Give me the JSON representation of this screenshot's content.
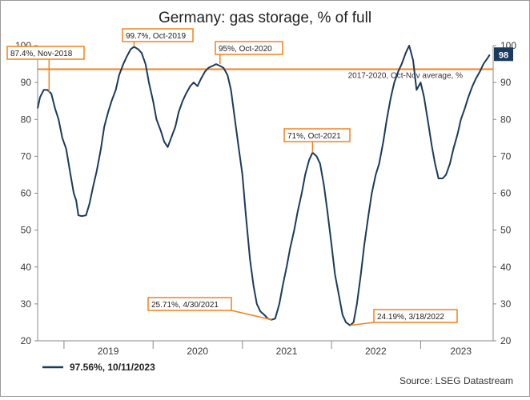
{
  "chart_data": {
    "type": "line",
    "title": "Germany: gas storage, % of full",
    "xlabel": "",
    "ylabel": "",
    "ylim": [
      20,
      100
    ],
    "yticks": [
      20,
      30,
      40,
      50,
      60,
      70,
      80,
      90,
      100
    ],
    "xlim": [
      "2018-09-15",
      "2023-10-25"
    ],
    "xticks": [
      {
        "label": "2019",
        "date": "2019-07-01"
      },
      {
        "label": "2020",
        "date": "2020-07-01"
      },
      {
        "label": "2021",
        "date": "2021-07-01"
      },
      {
        "label": "2022",
        "date": "2022-07-01"
      },
      {
        "label": "2023",
        "date": "2023-06-15"
      }
    ],
    "year_boundaries": [
      "2019-01-01",
      "2020-01-01",
      "2021-01-01",
      "2022-01-01",
      "2023-01-01"
    ],
    "grid": false,
    "series": [
      {
        "name": "97.56%, 10/11/2023",
        "color": "#1b3a5c",
        "points": [
          [
            "2018-09-15",
            83
          ],
          [
            "2018-09-25",
            86
          ],
          [
            "2018-10-10",
            88
          ],
          [
            "2018-10-25",
            88
          ],
          [
            "2018-11-10",
            87
          ],
          [
            "2018-11-25",
            83
          ],
          [
            "2018-12-10",
            80
          ],
          [
            "2018-12-25",
            75
          ],
          [
            "2019-01-10",
            72
          ],
          [
            "2019-01-25",
            66
          ],
          [
            "2019-02-10",
            60
          ],
          [
            "2019-02-20",
            58
          ],
          [
            "2019-03-01",
            54
          ],
          [
            "2019-03-15",
            53.8
          ],
          [
            "2019-04-01",
            54
          ],
          [
            "2019-04-15",
            57
          ],
          [
            "2019-05-01",
            62
          ],
          [
            "2019-05-15",
            66
          ],
          [
            "2019-06-01",
            72
          ],
          [
            "2019-06-15",
            78
          ],
          [
            "2019-07-01",
            82
          ],
          [
            "2019-07-15",
            85
          ],
          [
            "2019-08-01",
            88
          ],
          [
            "2019-08-15",
            92
          ],
          [
            "2019-09-01",
            95
          ],
          [
            "2019-09-15",
            97
          ],
          [
            "2019-10-01",
            99
          ],
          [
            "2019-10-15",
            99.7
          ],
          [
            "2019-11-01",
            99
          ],
          [
            "2019-11-15",
            98
          ],
          [
            "2019-12-01",
            95
          ],
          [
            "2019-12-15",
            90
          ],
          [
            "2020-01-01",
            85
          ],
          [
            "2020-01-15",
            80
          ],
          [
            "2020-02-01",
            77
          ],
          [
            "2020-02-15",
            74
          ],
          [
            "2020-03-01",
            72.5
          ],
          [
            "2020-03-15",
            75
          ],
          [
            "2020-04-01",
            78
          ],
          [
            "2020-04-15",
            82
          ],
          [
            "2020-05-01",
            85
          ],
          [
            "2020-05-15",
            87
          ],
          [
            "2020-06-01",
            89
          ],
          [
            "2020-06-15",
            90
          ],
          [
            "2020-07-01",
            89
          ],
          [
            "2020-07-15",
            91
          ],
          [
            "2020-08-01",
            93
          ],
          [
            "2020-08-15",
            94
          ],
          [
            "2020-09-01",
            94.5
          ],
          [
            "2020-09-15",
            95
          ],
          [
            "2020-10-01",
            94.5
          ],
          [
            "2020-10-15",
            94
          ],
          [
            "2020-11-01",
            92
          ],
          [
            "2020-11-15",
            88
          ],
          [
            "2020-12-01",
            80
          ],
          [
            "2020-12-15",
            73
          ],
          [
            "2021-01-01",
            65
          ],
          [
            "2021-01-15",
            54
          ],
          [
            "2021-02-01",
            42
          ],
          [
            "2021-02-15",
            35
          ],
          [
            "2021-03-01",
            30
          ],
          [
            "2021-03-15",
            28
          ],
          [
            "2021-04-01",
            27
          ],
          [
            "2021-04-15",
            26
          ],
          [
            "2021-04-30",
            25.71
          ],
          [
            "2021-05-15",
            26
          ],
          [
            "2021-06-01",
            30
          ],
          [
            "2021-06-15",
            35
          ],
          [
            "2021-07-01",
            40
          ],
          [
            "2021-07-15",
            45
          ],
          [
            "2021-08-01",
            50
          ],
          [
            "2021-08-15",
            55
          ],
          [
            "2021-09-01",
            60
          ],
          [
            "2021-09-15",
            65
          ],
          [
            "2021-10-01",
            69
          ],
          [
            "2021-10-15",
            71
          ],
          [
            "2021-11-01",
            70
          ],
          [
            "2021-11-15",
            68
          ],
          [
            "2021-12-01",
            62
          ],
          [
            "2021-12-15",
            55
          ],
          [
            "2022-01-01",
            46
          ],
          [
            "2022-01-15",
            38
          ],
          [
            "2022-02-01",
            32
          ],
          [
            "2022-02-15",
            27
          ],
          [
            "2022-03-01",
            25
          ],
          [
            "2022-03-18",
            24.19
          ],
          [
            "2022-04-01",
            25
          ],
          [
            "2022-04-15",
            30
          ],
          [
            "2022-05-01",
            38
          ],
          [
            "2022-05-15",
            46
          ],
          [
            "2022-06-01",
            54
          ],
          [
            "2022-06-15",
            60
          ],
          [
            "2022-07-01",
            65
          ],
          [
            "2022-07-15",
            68
          ],
          [
            "2022-08-01",
            74
          ],
          [
            "2022-08-15",
            80
          ],
          [
            "2022-09-01",
            86
          ],
          [
            "2022-09-15",
            90
          ],
          [
            "2022-10-01",
            93
          ],
          [
            "2022-10-15",
            95
          ],
          [
            "2022-11-01",
            98
          ],
          [
            "2022-11-15",
            100
          ],
          [
            "2022-12-01",
            96
          ],
          [
            "2022-12-15",
            88
          ],
          [
            "2023-01-01",
            90
          ],
          [
            "2023-01-15",
            86
          ],
          [
            "2023-02-01",
            79
          ],
          [
            "2023-02-15",
            73
          ],
          [
            "2023-03-01",
            68
          ],
          [
            "2023-03-15",
            64
          ],
          [
            "2023-04-01",
            64
          ],
          [
            "2023-04-15",
            65
          ],
          [
            "2023-05-01",
            68
          ],
          [
            "2023-05-15",
            72
          ],
          [
            "2023-06-01",
            76
          ],
          [
            "2023-06-15",
            80
          ],
          [
            "2023-07-01",
            83
          ],
          [
            "2023-07-15",
            86
          ],
          [
            "2023-08-01",
            89
          ],
          [
            "2023-08-15",
            91
          ],
          [
            "2023-09-01",
            93
          ],
          [
            "2023-09-15",
            95
          ],
          [
            "2023-10-01",
            96.5
          ],
          [
            "2023-10-11",
            97.56
          ]
        ]
      }
    ],
    "reference_line": {
      "label": "2017-2020, Oct-Nov average, %",
      "value": 93.6,
      "color": "#f0821e"
    },
    "annotations": [
      {
        "text": "87.4%, Nov-2018",
        "date": "2018-11-01",
        "value": 87.4
      },
      {
        "text": "99.7%, Oct-2019",
        "date": "2019-10-15",
        "value": 99.7
      },
      {
        "text": "95%, Oct-2020",
        "date": "2020-10-01",
        "value": 95
      },
      {
        "text": "71%, Oct-2021",
        "date": "2021-10-15",
        "value": 71
      },
      {
        "text": "25.71%, 4/30/2021",
        "date": "2021-04-30",
        "value": 25.71
      },
      {
        "text": "24.19%, 3/18/2022",
        "date": "2022-03-18",
        "value": 24.19
      }
    ],
    "last_value_badge": "98",
    "legend": {
      "label": "97.56%, 10/11/2023",
      "placement": "bottom-left"
    },
    "source": "Source: LSEG Datastream",
    "annotation_color": "#f0821e"
  }
}
